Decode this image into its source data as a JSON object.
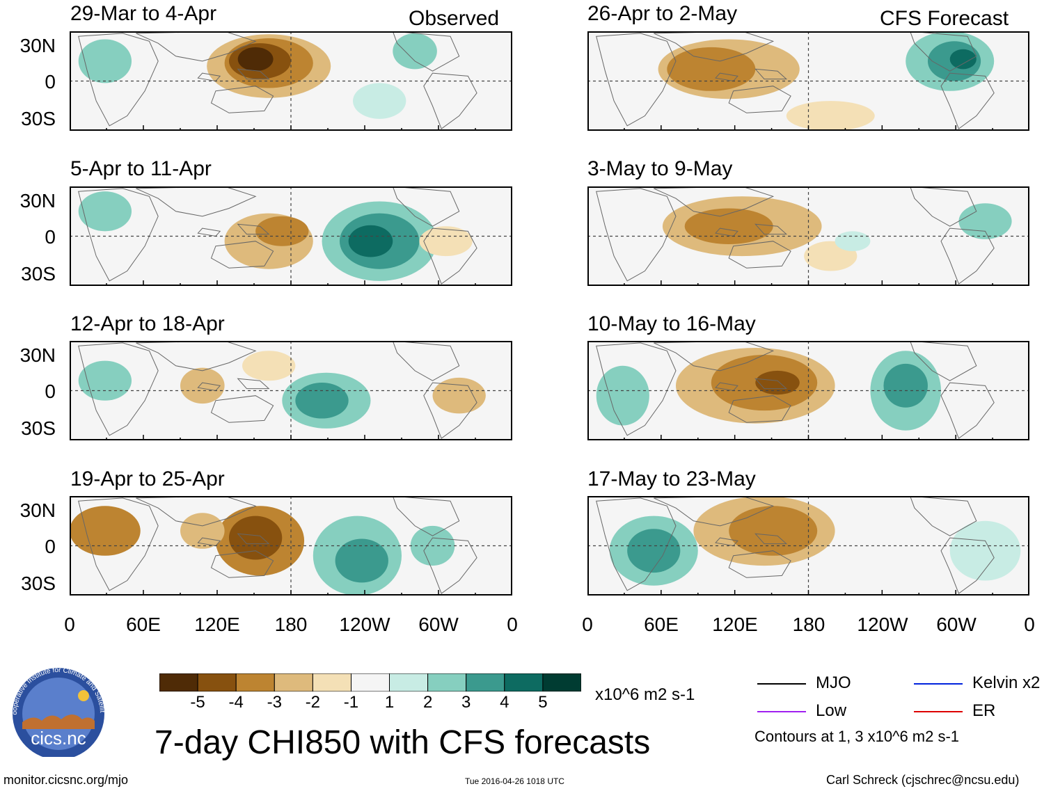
{
  "title": "7-day CHI850 with CFS forecasts",
  "columns": {
    "left_label": "Observed",
    "right_label": "CFS Forecast"
  },
  "panels": [
    {
      "title": "29-Mar to 4-Apr"
    },
    {
      "title": "5-Apr to 11-Apr"
    },
    {
      "title": "12-Apr to 18-Apr"
    },
    {
      "title": "19-Apr to 25-Apr"
    },
    {
      "title": "26-Apr to 2-May"
    },
    {
      "title": "3-May to 9-May"
    },
    {
      "title": "10-May to 16-May"
    },
    {
      "title": "17-May to 23-May"
    }
  ],
  "lat_labels": [
    "30N",
    "0",
    "30S"
  ],
  "lon_labels": [
    "0",
    "60E",
    "120E",
    "180",
    "120W",
    "60W",
    "0"
  ],
  "colorbar": {
    "colors": [
      "#4f2b06",
      "#87510f",
      "#bd8431",
      "#deba7c",
      "#f4e0b6",
      "#f5f5f5",
      "#c8ece4",
      "#86cfbf",
      "#3b9a8e",
      "#0d6b61",
      "#003c32"
    ],
    "labels": [
      "-5",
      "-4",
      "-3",
      "-2",
      "-1",
      "1",
      "2",
      "3",
      "4",
      "5"
    ],
    "units": "x10^6 m2 s-1"
  },
  "legend": {
    "items": [
      {
        "label": "MJO",
        "color": "#000000"
      },
      {
        "label": "Kelvin x2",
        "color": "#0022dd"
      },
      {
        "label": "Low",
        "color": "#a020f0"
      },
      {
        "label": "ER",
        "color": "#dd0000"
      }
    ],
    "note": "Contours at 1, 3 x10^6 m2 s-1"
  },
  "logo": {
    "text": "cics.nc",
    "ring_text": "Cooperative Institute for Climate and Satellites"
  },
  "footer": {
    "url": "monitor.cicsnc.org/mjo",
    "timestamp": "Tue 2016-04-26 1018 UTC",
    "author": "Carl Schreck (cjschrec@ncsu.edu)"
  }
}
